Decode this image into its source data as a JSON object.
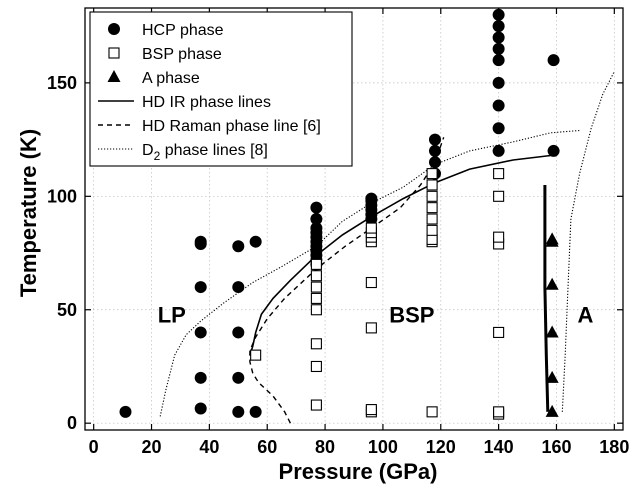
{
  "chart_data": {
    "type": "scatter",
    "title": "",
    "xlabel": "Pressure (GPa)",
    "ylabel": "Temperature (K)",
    "xlim": [
      -3,
      183
    ],
    "ylim": [
      -3,
      183
    ],
    "xticks": [
      0,
      20,
      40,
      60,
      80,
      100,
      120,
      140,
      160,
      180
    ],
    "yticks": [
      0,
      50,
      100,
      150
    ],
    "grid": true,
    "legend_position": "top-left",
    "legend": [
      {
        "label": "HCP phase",
        "marker": "filled-circle"
      },
      {
        "label": "BSP phase",
        "marker": "open-square"
      },
      {
        "label": "A phase",
        "marker": "filled-triangle"
      },
      {
        "label": "HD IR phase lines",
        "line": "solid"
      },
      {
        "label": "HD Raman phase line [6]",
        "line": "dashed"
      },
      {
        "label": "D",
        "sub": "2",
        "suffix": " phase lines [8]",
        "line": "dotted"
      }
    ],
    "region_labels": [
      {
        "text": "LP",
        "x": 27,
        "y": 48
      },
      {
        "text": "BSP",
        "x": 110,
        "y": 48
      },
      {
        "text": "A",
        "x": 170,
        "y": 48
      }
    ],
    "series": [
      {
        "name": "HCP phase",
        "marker": "filled-circle",
        "points": [
          [
            11,
            5
          ],
          [
            37,
            6.5
          ],
          [
            37,
            20
          ],
          [
            37,
            40
          ],
          [
            37,
            60
          ],
          [
            37,
            79
          ],
          [
            37,
            80
          ],
          [
            50,
            5
          ],
          [
            50,
            20
          ],
          [
            50,
            40
          ],
          [
            50,
            60
          ],
          [
            50,
            78
          ],
          [
            56,
            5
          ],
          [
            56,
            80
          ],
          [
            77,
            70
          ],
          [
            77,
            72
          ],
          [
            77,
            74
          ],
          [
            77,
            76
          ],
          [
            77,
            78
          ],
          [
            77,
            80
          ],
          [
            77,
            82
          ],
          [
            77,
            84
          ],
          [
            77,
            86
          ],
          [
            77,
            90
          ],
          [
            77,
            95
          ],
          [
            96,
            90
          ],
          [
            96,
            92
          ],
          [
            96,
            94
          ],
          [
            96,
            96
          ],
          [
            96,
            98
          ],
          [
            96,
            99
          ],
          [
            118,
            110
          ],
          [
            118,
            115
          ],
          [
            118,
            120
          ],
          [
            118,
            125
          ],
          [
            140,
            120
          ],
          [
            140,
            130
          ],
          [
            140,
            140
          ],
          [
            140,
            150
          ],
          [
            140,
            160
          ],
          [
            140,
            165
          ],
          [
            140,
            170
          ],
          [
            140,
            175
          ],
          [
            140,
            180
          ],
          [
            159,
            120
          ],
          [
            159,
            160
          ]
        ]
      },
      {
        "name": "BSP phase",
        "marker": "open-square",
        "points": [
          [
            56,
            30
          ],
          [
            77,
            8
          ],
          [
            77,
            25
          ],
          [
            77,
            35
          ],
          [
            77,
            50
          ],
          [
            77,
            55
          ],
          [
            77,
            60
          ],
          [
            77,
            65
          ],
          [
            77,
            70
          ],
          [
            96,
            5
          ],
          [
            96,
            6
          ],
          [
            96,
            42
          ],
          [
            96,
            62
          ],
          [
            96,
            80
          ],
          [
            96,
            82
          ],
          [
            96,
            84
          ],
          [
            96,
            86
          ],
          [
            117,
            5
          ],
          [
            117,
            80
          ],
          [
            117,
            81
          ],
          [
            117,
            85
          ],
          [
            117,
            90
          ],
          [
            117,
            95
          ],
          [
            117,
            100
          ],
          [
            117,
            105
          ],
          [
            117,
            110
          ],
          [
            140,
            4
          ],
          [
            140,
            5
          ],
          [
            140,
            40
          ],
          [
            140,
            79
          ],
          [
            140,
            82
          ],
          [
            140,
            100
          ],
          [
            140,
            110
          ]
        ]
      },
      {
        "name": "A phase",
        "marker": "filled-triangle",
        "points": [
          [
            158.5,
            5
          ],
          [
            158.5,
            20
          ],
          [
            158.5,
            40
          ],
          [
            158.5,
            61
          ],
          [
            158.5,
            80
          ],
          [
            158.5,
            81
          ]
        ]
      },
      {
        "name": "HD IR phase lines",
        "line": "solid",
        "segments": [
          [
            [
              54,
              30
            ],
            [
              55,
              34
            ],
            [
              56,
              40
            ],
            [
              58,
              48
            ],
            [
              62,
              55
            ],
            [
              68,
              63
            ],
            [
              77,
              74
            ],
            [
              86,
              83
            ],
            [
              96,
              91
            ],
            [
              107,
              99
            ],
            [
              118,
              106
            ],
            [
              130,
              112
            ],
            [
              145,
              116
            ],
            [
              158,
              118
            ]
          ],
          [
            [
              157,
              5
            ],
            [
              156.5,
              30
            ],
            [
              156,
              60
            ],
            [
              156,
              90
            ],
            [
              156,
              105
            ]
          ]
        ]
      },
      {
        "name": "HD Raman phase line [6]",
        "line": "dashed",
        "segments": [
          [
            [
              68,
              0
            ],
            [
              66,
              5
            ],
            [
              62,
              12
            ],
            [
              57,
              18
            ],
            [
              55,
              22
            ],
            [
              54,
              27
            ],
            [
              54,
              32
            ],
            [
              56,
              38
            ],
            [
              60,
              46
            ],
            [
              66,
              55
            ],
            [
              77,
              68
            ],
            [
              87,
              78
            ],
            [
              96,
              86
            ],
            [
              106,
              95
            ],
            [
              113,
              105
            ],
            [
              118,
              115
            ],
            [
              121,
              126
            ]
          ]
        ]
      },
      {
        "name": "D phase lines [8]",
        "line": "dotted",
        "segments": [
          [
            [
              23,
              3
            ],
            [
              25,
              15
            ],
            [
              28,
              30
            ],
            [
              32,
              39
            ],
            [
              37,
              45
            ],
            [
              45,
              53
            ],
            [
              55,
              62
            ],
            [
              65,
              69
            ],
            [
              77,
              78
            ],
            [
              86,
              89
            ],
            [
              96,
              97
            ],
            [
              107,
              104
            ],
            [
              118,
              114
            ],
            [
              130,
              120
            ],
            [
              145,
              124
            ],
            [
              158,
              128
            ],
            [
              168,
              129
            ]
          ],
          [
            [
              162,
              5
            ],
            [
              163,
              30
            ],
            [
              164,
              60
            ],
            [
              165,
              90
            ],
            [
              168,
              110
            ],
            [
              172,
              130
            ],
            [
              176,
              145
            ],
            [
              180,
              155
            ]
          ]
        ]
      }
    ]
  }
}
